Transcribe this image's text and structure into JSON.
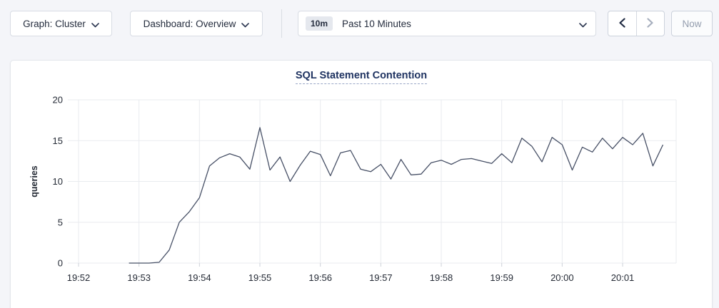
{
  "toolbar": {
    "graph_dropdown": {
      "label": "Graph: Cluster"
    },
    "dashboard_dropdown": {
      "label": "Dashboard: Overview"
    },
    "time_selector": {
      "badge": "10m",
      "label": "Past 10 Minutes"
    },
    "now_button": {
      "label": "Now"
    }
  },
  "chart_data": {
    "type": "line",
    "title": "SQL Statement Contention",
    "xlabel": "",
    "ylabel": "queries",
    "ylim": [
      0,
      20
    ],
    "yticks": [
      0,
      5,
      10,
      15,
      20
    ],
    "xticks": [
      "19:52",
      "19:53",
      "19:54",
      "19:55",
      "19:56",
      "19:57",
      "19:58",
      "19:59",
      "20:00",
      "20:01"
    ],
    "grid": true,
    "legend": "none",
    "series": [
      {
        "name": "queries",
        "points": [
          [
            "19:52:50",
            0
          ],
          [
            "19:53:00",
            0
          ],
          [
            "19:53:10",
            0
          ],
          [
            "19:53:20",
            0.1
          ],
          [
            "19:53:30",
            1.6
          ],
          [
            "19:53:40",
            5.0
          ],
          [
            "19:53:50",
            6.3
          ],
          [
            "19:54:00",
            8.0
          ],
          [
            "19:54:10",
            11.9
          ],
          [
            "19:54:20",
            12.9
          ],
          [
            "19:54:30",
            13.4
          ],
          [
            "19:54:40",
            13.0
          ],
          [
            "19:54:50",
            11.5
          ],
          [
            "19:55:00",
            16.6
          ],
          [
            "19:55:10",
            11.4
          ],
          [
            "19:55:20",
            13.0
          ],
          [
            "19:55:30",
            10.0
          ],
          [
            "19:55:40",
            12.0
          ],
          [
            "19:55:50",
            13.7
          ],
          [
            "19:56:00",
            13.3
          ],
          [
            "19:56:10",
            10.7
          ],
          [
            "19:56:20",
            13.5
          ],
          [
            "19:56:30",
            13.8
          ],
          [
            "19:56:40",
            11.5
          ],
          [
            "19:56:50",
            11.2
          ],
          [
            "19:57:00",
            12.1
          ],
          [
            "19:57:10",
            10.3
          ],
          [
            "19:57:20",
            12.7
          ],
          [
            "19:57:30",
            10.8
          ],
          [
            "19:57:40",
            10.9
          ],
          [
            "19:57:50",
            12.3
          ],
          [
            "19:58:00",
            12.6
          ],
          [
            "19:58:10",
            12.1
          ],
          [
            "19:58:20",
            12.7
          ],
          [
            "19:58:30",
            12.8
          ],
          [
            "19:58:40",
            12.5
          ],
          [
            "19:58:50",
            12.2
          ],
          [
            "19:59:00",
            13.4
          ],
          [
            "19:59:10",
            12.3
          ],
          [
            "19:59:20",
            15.3
          ],
          [
            "19:59:30",
            14.3
          ],
          [
            "19:59:40",
            12.4
          ],
          [
            "19:59:50",
            15.4
          ],
          [
            "20:00:00",
            14.5
          ],
          [
            "20:00:10",
            11.4
          ],
          [
            "20:00:20",
            14.2
          ],
          [
            "20:00:30",
            13.6
          ],
          [
            "20:00:40",
            15.3
          ],
          [
            "20:00:50",
            14.0
          ],
          [
            "20:01:00",
            15.4
          ],
          [
            "20:01:10",
            14.5
          ],
          [
            "20:01:20",
            15.9
          ],
          [
            "20:01:30",
            11.9
          ],
          [
            "20:01:40",
            14.5
          ]
        ]
      }
    ],
    "colors": {
      "line": "#475066",
      "grid": "#e9ebef",
      "tick": "#cdd1d8",
      "axis_text": "#242a35",
      "title": "#1f3361"
    }
  }
}
